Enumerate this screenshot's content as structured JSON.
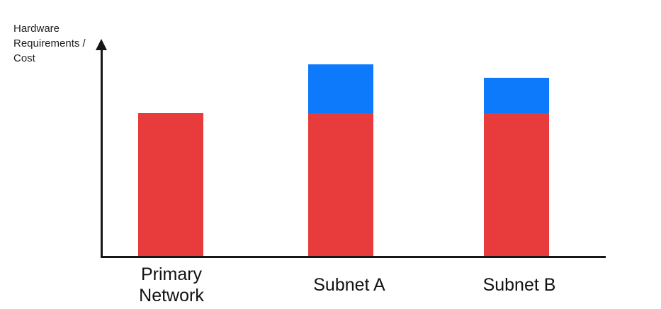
{
  "chart_data": {
    "type": "bar",
    "stacked": true,
    "title": "",
    "xlabel": "",
    "ylabel": "Hardware\nRequirements /\nCost",
    "categories": [
      "Primary\nNetwork",
      "Subnet A",
      "Subnet B"
    ],
    "series": [
      {
        "name": "red-base-segment",
        "color": "#E83B3B",
        "values": [
          2.0,
          2.0,
          2.0
        ]
      },
      {
        "name": "blue-top-segment",
        "color": "#0D7AFC",
        "values": [
          0,
          0.68,
          0.5
        ]
      }
    ],
    "ylim": [
      0,
      3
    ],
    "value_ticks": [],
    "grid": false,
    "legend": false,
    "axis_color": "#161616"
  }
}
